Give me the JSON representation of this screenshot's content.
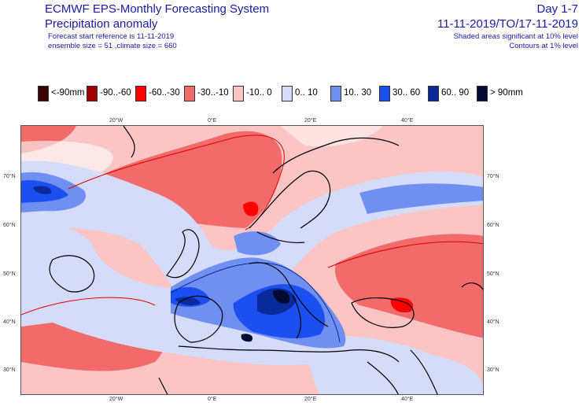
{
  "header": {
    "title": "ECMWF EPS-Monthly Forecasting System",
    "subtitle": "Precipitation anomaly",
    "forecast_ref": "Forecast start reference is 11-11-2019",
    "ensemble": "ensemble size = 51  ,climate size = 660",
    "day_range": "Day 1-7",
    "date_range": "11-11-2019/TO/17-11-2019",
    "note_shaded": "Shaded areas significant at 10% level",
    "note_contours": "Contours at 1% level"
  },
  "legend": [
    {
      "label": "<-90mm",
      "color": "#3a0000"
    },
    {
      "label": "-90..-60",
      "color": "#a00000"
    },
    {
      "label": "-60..-30",
      "color": "#ff0000"
    },
    {
      "label": "-30..-10",
      "color": "#f26a6a"
    },
    {
      "label": "-10..  0",
      "color": "#fbc5c5"
    },
    {
      "label": "0.. 10",
      "color": "#d4dcfa"
    },
    {
      "label": "10.. 30",
      "color": "#6f90f0"
    },
    {
      "label": "30.. 60",
      "color": "#1b4ff0"
    },
    {
      "label": "60.. 90",
      "color": "#0a2a9a"
    },
    {
      "label": "> 90mm",
      "color": "#020b33"
    }
  ],
  "map": {
    "lon_labels": [
      "20°W",
      "0°E",
      "20°E",
      "40°E"
    ],
    "lat_labels": [
      "70°N",
      "60°N",
      "50°N",
      "40°N",
      "30°N"
    ]
  }
}
